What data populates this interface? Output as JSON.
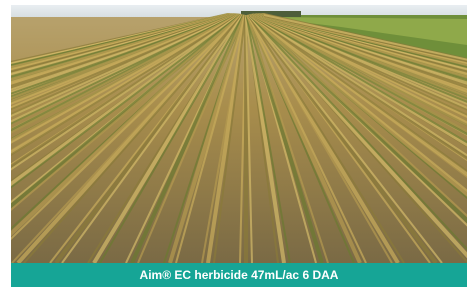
{
  "caption": "Aim® EC herbicide 47mL/ac 6 DAA"
}
